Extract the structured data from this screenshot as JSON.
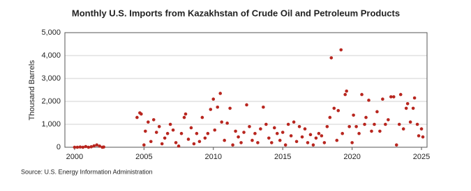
{
  "chart_data": {
    "type": "scatter",
    "title": "Monthly U.S. Imports from Kazakhstan of Crude Oil and Petroleum Products",
    "y_label": "Thousand Barrels",
    "source": "Source: U.S. Energy Information Administration",
    "color": "#b8261f",
    "grid": true,
    "xlim": [
      1999.3,
      2025.4
    ],
    "xticks": [
      2000,
      2005,
      2010,
      2015,
      2020,
      2025
    ],
    "ylim": [
      0,
      5000
    ],
    "yticks": [
      0,
      {
        "value": 1000,
        "label": "1,000"
      },
      {
        "value": 2000,
        "label": "2,000"
      },
      {
        "value": 3000,
        "label": "3,000"
      },
      {
        "value": 4000,
        "label": "4,000"
      },
      {
        "value": 5000,
        "label": "5,000"
      }
    ],
    "x": [
      2000.0,
      2000.2,
      2000.4,
      2000.6,
      2000.8,
      2001.0,
      2001.2,
      2001.4,
      2001.6,
      2001.8,
      2002.0,
      2002.1,
      2004.5,
      2004.7,
      2004.8,
      2005.0,
      2005.1,
      2005.3,
      2005.5,
      2005.7,
      2005.9,
      2006.1,
      2006.3,
      2006.5,
      2006.7,
      2006.9,
      2007.1,
      2007.3,
      2007.5,
      2007.7,
      2007.9,
      2008.0,
      2008.2,
      2008.4,
      2008.6,
      2008.8,
      2009.0,
      2009.2,
      2009.4,
      2009.6,
      2009.8,
      2010.0,
      2010.1,
      2010.3,
      2010.5,
      2010.6,
      2010.8,
      2011.0,
      2011.2,
      2011.4,
      2011.6,
      2011.8,
      2012.0,
      2012.2,
      2012.4,
      2012.6,
      2012.8,
      2013.0,
      2013.2,
      2013.4,
      2013.6,
      2013.8,
      2014.0,
      2014.2,
      2014.4,
      2014.6,
      2014.8,
      2015.0,
      2015.2,
      2015.4,
      2015.6,
      2015.8,
      2016.0,
      2016.2,
      2016.4,
      2016.6,
      2016.8,
      2017.0,
      2017.2,
      2017.4,
      2017.6,
      2017.8,
      2018.0,
      2018.2,
      2018.4,
      2018.5,
      2018.7,
      2018.9,
      2019.0,
      2019.2,
      2019.3,
      2019.5,
      2019.6,
      2019.8,
      2020.0,
      2020.1,
      2020.3,
      2020.5,
      2020.7,
      2020.9,
      2021.0,
      2021.2,
      2021.4,
      2021.6,
      2021.8,
      2022.0,
      2022.2,
      2022.4,
      2022.6,
      2022.8,
      2023.0,
      2023.2,
      2023.4,
      2023.5,
      2023.7,
      2023.9,
      2024.0,
      2024.2,
      2024.4,
      2024.5,
      2024.7,
      2024.8,
      2025.0,
      2025.1
    ],
    "y": [
      0,
      0,
      10,
      0,
      30,
      0,
      20,
      60,
      100,
      50,
      0,
      10,
      1300,
      1500,
      1450,
      100,
      700,
      1100,
      250,
      1200,
      650,
      900,
      150,
      400,
      600,
      1000,
      750,
      200,
      50,
      600,
      1300,
      1450,
      350,
      850,
      150,
      600,
      250,
      1300,
      400,
      600,
      1650,
      2100,
      750,
      1750,
      2350,
      1100,
      300,
      1050,
      1700,
      100,
      700,
      450,
      200,
      650,
      1850,
      900,
      300,
      600,
      200,
      800,
      1750,
      1000,
      400,
      200,
      850,
      600,
      300,
      650,
      100,
      1000,
      500,
      1100,
      250,
      900,
      450,
      800,
      200,
      550,
      100,
      400,
      600,
      500,
      200,
      900,
      1300,
      3900,
      1700,
      300,
      1600,
      4250,
      600,
      2300,
      2450,
      900,
      200,
      1400,
      900,
      600,
      2300,
      1000,
      1300,
      2050,
      700,
      1000,
      1550,
      700,
      2100,
      1000,
      1200,
      2200,
      2200,
      100,
      1000,
      2300,
      800,
      1700,
      1900,
      1100,
      1700,
      2150,
      1000,
      500,
      800,
      450
    ]
  }
}
